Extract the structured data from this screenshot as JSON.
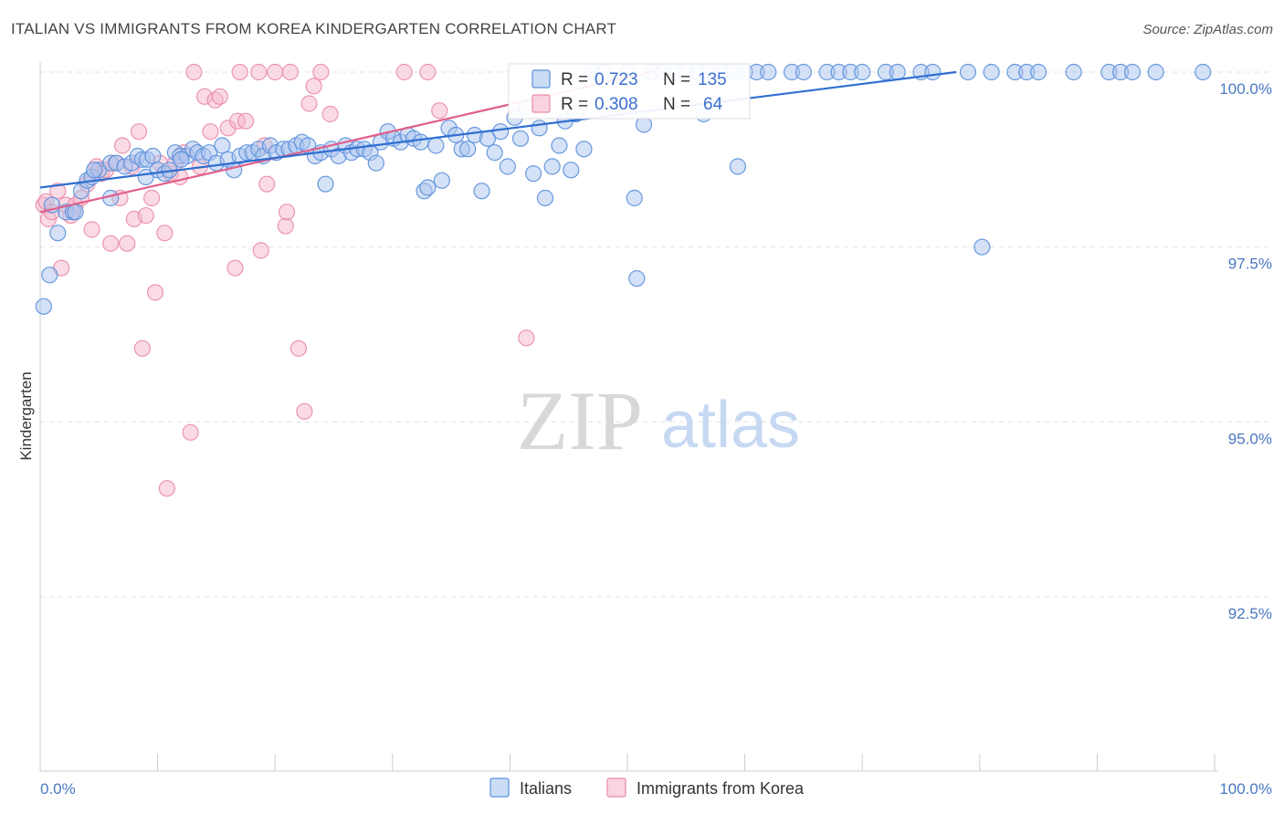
{
  "title": "ITALIAN VS IMMIGRANTS FROM KOREA KINDERGARTEN CORRELATION CHART",
  "source": "Source: ZipAtlas.com",
  "colors": {
    "italians_fill": "#a9c4ee",
    "italians_stroke": "#5a8fdc",
    "italians_line": "#2f6fd0",
    "korea_fill": "#f6b8cb",
    "korea_stroke": "#e98aa8",
    "korea_line": "#e0608d",
    "tick_text": "#4a78c2",
    "grid": "#e3e3e3"
  },
  "chart_data": {
    "type": "scatter",
    "title": "ITALIAN VS IMMIGRANTS FROM KOREA KINDERGARTEN CORRELATION CHART",
    "xlabel": "",
    "ylabel": "Kindergarten",
    "xlim": [
      0,
      100
    ],
    "ylim": [
      90.2,
      100.3
    ],
    "x_tick_labels": [
      "0.0%",
      "100.0%"
    ],
    "y_ticks": [
      {
        "value": 100.0,
        "label": "100.0%"
      },
      {
        "value": 97.5,
        "label": "97.5%"
      },
      {
        "value": 95.0,
        "label": "95.0%"
      },
      {
        "value": 92.5,
        "label": "92.5%"
      }
    ],
    "grid": true,
    "legend_position": "top-center",
    "stats": [
      {
        "r_label": "R =",
        "r_value": "0.723",
        "n_label": "N =",
        "n_value": "135"
      },
      {
        "r_label": "R =",
        "r_value": "0.308",
        "n_label": "N =",
        "n_value": "64"
      }
    ],
    "series": [
      {
        "name": "Italians",
        "trend": {
          "x": [
            0,
            78
          ],
          "y": [
            98.35,
            100.0
          ]
        },
        "points": [
          [
            0.3,
            96.65
          ],
          [
            0.8,
            97.1
          ],
          [
            1.5,
            97.7
          ],
          [
            2.2,
            98.0
          ],
          [
            2.8,
            98.0
          ],
          [
            3.5,
            98.3
          ],
          [
            4.0,
            98.45
          ],
          [
            4.4,
            98.5
          ],
          [
            5.0,
            98.6
          ],
          [
            6.0,
            98.7
          ],
          [
            6.5,
            98.7
          ],
          [
            7.2,
            98.65
          ],
          [
            7.8,
            98.7
          ],
          [
            8.3,
            98.8
          ],
          [
            8.7,
            98.75
          ],
          [
            9.1,
            98.75
          ],
          [
            9.6,
            98.8
          ],
          [
            10.0,
            98.6
          ],
          [
            10.6,
            98.55
          ],
          [
            11.0,
            98.6
          ],
          [
            11.5,
            98.85
          ],
          [
            11.9,
            98.8
          ],
          [
            12.5,
            98.8
          ],
          [
            13.0,
            98.9
          ],
          [
            13.4,
            98.85
          ],
          [
            13.9,
            98.8
          ],
          [
            14.4,
            98.85
          ],
          [
            15.0,
            98.7
          ],
          [
            15.5,
            98.95
          ],
          [
            16.0,
            98.75
          ],
          [
            16.5,
            98.6
          ],
          [
            17.0,
            98.8
          ],
          [
            17.6,
            98.85
          ],
          [
            18.1,
            98.85
          ],
          [
            18.6,
            98.9
          ],
          [
            19.0,
            98.8
          ],
          [
            19.6,
            98.95
          ],
          [
            20.1,
            98.85
          ],
          [
            20.7,
            98.9
          ],
          [
            21.2,
            98.9
          ],
          [
            21.8,
            98.95
          ],
          [
            22.3,
            99.0
          ],
          [
            22.8,
            98.95
          ],
          [
            23.4,
            98.8
          ],
          [
            23.9,
            98.85
          ],
          [
            24.3,
            98.4
          ],
          [
            24.8,
            98.9
          ],
          [
            25.4,
            98.8
          ],
          [
            26.0,
            98.95
          ],
          [
            26.5,
            98.85
          ],
          [
            27.0,
            98.9
          ],
          [
            27.6,
            98.9
          ],
          [
            28.1,
            98.85
          ],
          [
            28.6,
            98.7
          ],
          [
            29.0,
            99.0
          ],
          [
            29.6,
            99.15
          ],
          [
            30.1,
            99.05
          ],
          [
            30.7,
            99.0
          ],
          [
            31.3,
            99.1
          ],
          [
            31.8,
            99.05
          ],
          [
            32.4,
            99.0
          ],
          [
            32.7,
            98.3
          ],
          [
            33.0,
            98.35
          ],
          [
            33.7,
            98.95
          ],
          [
            34.2,
            98.45
          ],
          [
            34.8,
            99.2
          ],
          [
            35.4,
            99.1
          ],
          [
            35.9,
            98.9
          ],
          [
            36.4,
            98.9
          ],
          [
            37.0,
            99.1
          ],
          [
            37.6,
            98.3
          ],
          [
            38.1,
            99.05
          ],
          [
            38.7,
            98.85
          ],
          [
            39.2,
            99.15
          ],
          [
            39.8,
            98.65
          ],
          [
            40.4,
            99.35
          ],
          [
            40.9,
            99.05
          ],
          [
            41.4,
            99.5
          ],
          [
            42.0,
            98.55
          ],
          [
            42.5,
            99.2
          ],
          [
            43.0,
            98.2
          ],
          [
            43.6,
            98.65
          ],
          [
            44.2,
            98.95
          ],
          [
            44.7,
            99.3
          ],
          [
            45.2,
            98.6
          ],
          [
            45.6,
            99.4
          ],
          [
            46.3,
            98.9
          ],
          [
            47.0,
            100.0
          ],
          [
            48.0,
            100.0
          ],
          [
            49.0,
            99.55
          ],
          [
            50.0,
            100.0
          ],
          [
            50.6,
            98.2
          ],
          [
            50.8,
            97.05
          ],
          [
            51.4,
            99.25
          ],
          [
            52.0,
            100.0
          ],
          [
            53.0,
            100.0
          ],
          [
            54.0,
            100.0
          ],
          [
            55.0,
            100.0
          ],
          [
            56.0,
            100.0
          ],
          [
            56.5,
            99.4
          ],
          [
            57.0,
            100.0
          ],
          [
            58.0,
            100.0
          ],
          [
            59.0,
            100.0
          ],
          [
            59.4,
            98.65
          ],
          [
            60.0,
            100.0
          ],
          [
            61.0,
            100.0
          ],
          [
            62.0,
            100.0
          ],
          [
            64.0,
            100.0
          ],
          [
            65.0,
            100.0
          ],
          [
            67.0,
            100.0
          ],
          [
            68.0,
            100.0
          ],
          [
            69.0,
            100.0
          ],
          [
            70.0,
            100.0
          ],
          [
            72.0,
            100.0
          ],
          [
            73.0,
            100.0
          ],
          [
            75.0,
            100.0
          ],
          [
            76.0,
            100.0
          ],
          [
            79.0,
            100.0
          ],
          [
            80.2,
            97.5
          ],
          [
            81.0,
            100.0
          ],
          [
            83.0,
            100.0
          ],
          [
            84.0,
            100.0
          ],
          [
            85.0,
            100.0
          ],
          [
            88.0,
            100.0
          ],
          [
            91.0,
            100.0
          ],
          [
            92.0,
            100.0
          ],
          [
            93.0,
            100.0
          ],
          [
            95.0,
            100.0
          ],
          [
            99.0,
            100.0
          ],
          [
            1.0,
            98.1
          ],
          [
            3.0,
            98.0
          ],
          [
            4.6,
            98.6
          ],
          [
            6.0,
            98.2
          ],
          [
            9.0,
            98.5
          ],
          [
            12.0,
            98.75
          ]
        ]
      },
      {
        "name": "Immigrants from Korea",
        "trend": {
          "x": [
            0,
            52
          ],
          "y": [
            98.0,
            100.0
          ]
        },
        "points": [
          [
            0.3,
            98.1
          ],
          [
            0.5,
            98.15
          ],
          [
            0.7,
            97.9
          ],
          [
            1.0,
            98.0
          ],
          [
            1.5,
            98.3
          ],
          [
            1.8,
            97.2
          ],
          [
            2.2,
            98.1
          ],
          [
            2.6,
            97.95
          ],
          [
            3.0,
            98.1
          ],
          [
            3.5,
            98.2
          ],
          [
            4.0,
            98.4
          ],
          [
            4.4,
            97.75
          ],
          [
            4.8,
            98.65
          ],
          [
            5.2,
            98.55
          ],
          [
            5.6,
            98.6
          ],
          [
            6.0,
            97.55
          ],
          [
            6.4,
            98.7
          ],
          [
            6.8,
            98.2
          ],
          [
            7.0,
            98.95
          ],
          [
            7.4,
            97.55
          ],
          [
            7.8,
            98.65
          ],
          [
            8.0,
            97.9
          ],
          [
            8.4,
            99.15
          ],
          [
            8.7,
            96.05
          ],
          [
            9.0,
            97.95
          ],
          [
            9.5,
            98.2
          ],
          [
            9.8,
            96.85
          ],
          [
            10.2,
            98.7
          ],
          [
            10.6,
            97.7
          ],
          [
            10.8,
            94.05
          ],
          [
            11.1,
            98.55
          ],
          [
            11.5,
            98.7
          ],
          [
            11.9,
            98.5
          ],
          [
            12.2,
            98.85
          ],
          [
            12.8,
            94.85
          ],
          [
            13.1,
            100.0
          ],
          [
            13.6,
            98.65
          ],
          [
            14.0,
            99.65
          ],
          [
            14.5,
            99.15
          ],
          [
            14.9,
            99.6
          ],
          [
            15.3,
            99.65
          ],
          [
            16.0,
            99.2
          ],
          [
            16.6,
            97.2
          ],
          [
            16.8,
            99.3
          ],
          [
            17.0,
            100.0
          ],
          [
            17.5,
            99.3
          ],
          [
            18.6,
            100.0
          ],
          [
            18.8,
            97.45
          ],
          [
            19.1,
            98.95
          ],
          [
            19.3,
            98.4
          ],
          [
            20.0,
            100.0
          ],
          [
            20.9,
            97.8
          ],
          [
            21.0,
            98.0
          ],
          [
            21.3,
            100.0
          ],
          [
            22.0,
            96.05
          ],
          [
            22.5,
            95.15
          ],
          [
            22.9,
            99.55
          ],
          [
            23.3,
            99.8
          ],
          [
            23.9,
            100.0
          ],
          [
            24.7,
            99.4
          ],
          [
            31.0,
            100.0
          ],
          [
            33.0,
            100.0
          ],
          [
            34.0,
            99.45
          ],
          [
            41.4,
            96.2
          ]
        ]
      }
    ]
  },
  "legend": {
    "items": [
      {
        "label": "Italians"
      },
      {
        "label": "Immigrants from Korea"
      }
    ]
  },
  "watermark": {
    "part1": "ZIP",
    "part2": "atlas"
  }
}
